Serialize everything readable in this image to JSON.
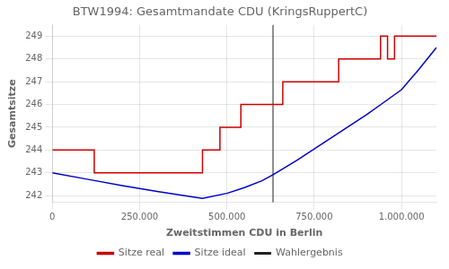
{
  "chart_data": {
    "type": "line",
    "title": "BTW1994: Gesamtmandate CDU (KringsRuppertC)",
    "xlabel": "Zweitstimmen CDU in Berlin",
    "ylabel": "Gesamtsitze",
    "xlim": [
      0,
      1100000
    ],
    "ylim": [
      241.7,
      249.5
    ],
    "xticks": [
      0,
      {
        "value": 250000,
        "label": "250.000"
      },
      {
        "value": 500000,
        "label": "500.000"
      },
      {
        "value": 750000,
        "label": "750.000"
      },
      {
        "value": 1000000,
        "label": "1.000.000"
      }
    ],
    "yticks": [
      242,
      243,
      244,
      245,
      246,
      247,
      248,
      249
    ],
    "grid": true,
    "legend": "bottom",
    "series": [
      {
        "name": "Sitze real",
        "color": "#cc0000",
        "x": [
          0,
          120000,
          120000,
          430000,
          430000,
          480000,
          480000,
          540000,
          540000,
          600000,
          600000,
          660000,
          660000,
          720000,
          720000,
          820000,
          820000,
          940000,
          940000,
          960000,
          960000,
          980000,
          980000,
          1000000,
          1000000,
          1100000
        ],
        "values": [
          244,
          244,
          243,
          243,
          244,
          244,
          245,
          245,
          246,
          246,
          246,
          246,
          247,
          247,
          247,
          247,
          248,
          248,
          249,
          249,
          248,
          248,
          249,
          249,
          249,
          249
        ]
      },
      {
        "name": "Sitze ideal",
        "color": "#0000cc",
        "x": [
          0,
          100000,
          200000,
          300000,
          400000,
          430000,
          500000,
          550000,
          600000,
          632000,
          700000,
          750000,
          800000,
          850000,
          900000,
          950000,
          1000000,
          1050000,
          1100000
        ],
        "values": [
          243.0,
          242.72,
          242.44,
          242.18,
          241.95,
          241.88,
          242.1,
          242.35,
          242.65,
          242.92,
          243.55,
          244.05,
          244.55,
          245.05,
          245.55,
          246.1,
          246.65,
          247.55,
          248.5
        ]
      },
      {
        "name": "Wahlergebnis",
        "color": "#222222",
        "type": "vline",
        "x": 632000
      }
    ]
  }
}
